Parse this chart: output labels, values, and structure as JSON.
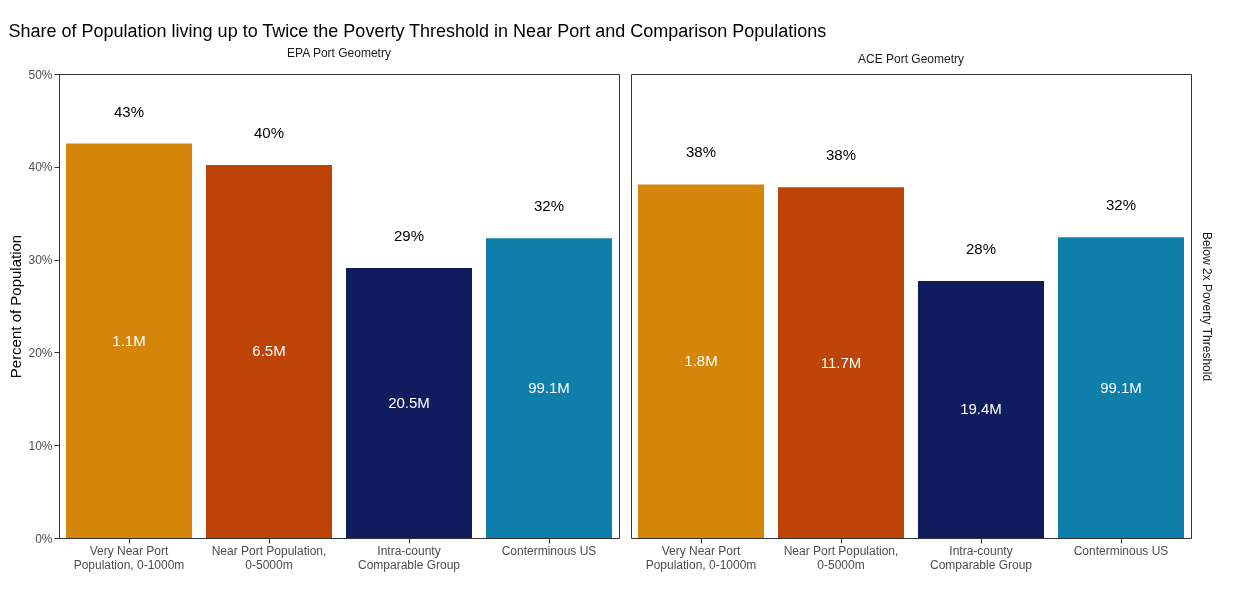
{
  "chart_data": [
    {
      "type": "bar",
      "title": "Share of Population living up to Twice the Poverty Threshold in Near Port and Comparison Populations",
      "subtitle": "EPA Port Geometry",
      "ylabel": "Percent of Population",
      "categories": [
        "Very Near Port Population, 0-1000m",
        "Near Port Population, 0-5000m",
        "Intra-county Comparable Group",
        "Conterminous US"
      ],
      "values": [
        42.5,
        40.2,
        29.1,
        32.3
      ],
      "colors": [
        "#d4850a",
        "#be4306",
        "#111c5e",
        "#0f7eaa"
      ],
      "value_labels": [
        "43%",
        "40%",
        "29%",
        "32%"
      ],
      "ylim": [
        0,
        50
      ],
      "yticks": [
        {
          "value": 0,
          "label": "0%"
        },
        {
          "value": 10,
          "label": "10%"
        },
        {
          "value": 20,
          "label": "20%"
        },
        {
          "value": 30,
          "label": "30%"
        },
        {
          "value": 40,
          "label": "40%"
        },
        {
          "value": 50,
          "label": "50%"
        }
      ],
      "annotations": [
        "1.1M",
        "6.5M",
        "20.5M",
        "99.1M"
      ]
    },
    {
      "type": "bar",
      "subtitle": "ACE Port Geometry",
      "categories": [
        "Very Near Port Population, 0-1000m",
        "Near Port Population, 0-5000m",
        "Intra-county Comparable Group",
        "Conterminous US"
      ],
      "values": [
        38.1,
        37.8,
        27.7,
        32.4
      ],
      "colors": [
        "#d4850a",
        "#be4306",
        "#111c5e",
        "#0f7eaa"
      ],
      "value_labels": [
        "38%",
        "38%",
        "28%",
        "32%"
      ],
      "ylim": [
        0,
        50
      ],
      "tick_labels": "x",
      "annotations": [
        "1.8M",
        "11.7M",
        "19.4M",
        "99.1M",
        "Below 2x Poverty Threshold"
      ]
    }
  ]
}
